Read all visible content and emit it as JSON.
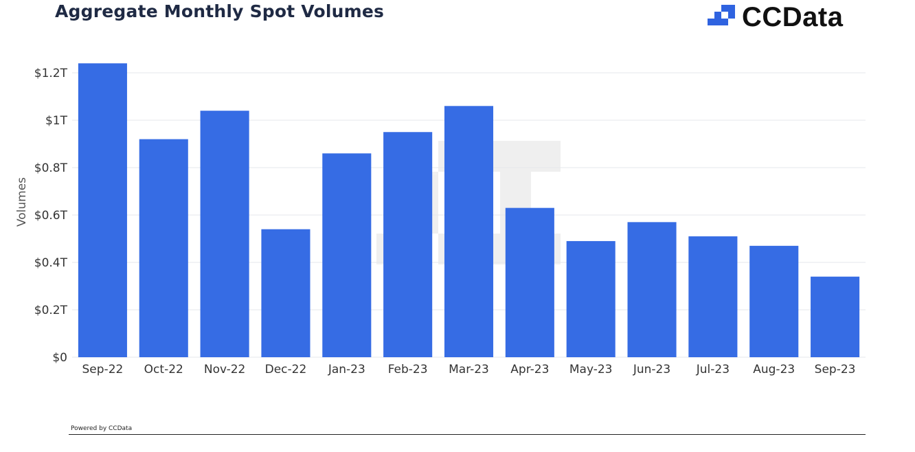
{
  "header": {
    "title": "Aggregate Monthly Spot Volumes",
    "logo_text": "CCData",
    "logo_icon": "ccdata-logo-icon"
  },
  "footer": {
    "text": "Powered by CCData"
  },
  "colors": {
    "bar": "#3067e3",
    "grid": "#e5e7eb",
    "axis_text": "#333333",
    "title": "#1f2a44"
  },
  "chart_data": {
    "type": "bar",
    "title": "Aggregate Monthly Spot Volumes",
    "xlabel": "",
    "ylabel": "Volumes",
    "categories": [
      "Sep-22",
      "Oct-22",
      "Nov-22",
      "Dec-22",
      "Jan-23",
      "Feb-23",
      "Mar-23",
      "Apr-23",
      "May-23",
      "Jun-23",
      "Jul-23",
      "Aug-23",
      "Sep-23"
    ],
    "values": [
      1.24,
      0.92,
      1.04,
      0.54,
      0.86,
      0.95,
      1.06,
      0.63,
      0.49,
      0.57,
      0.51,
      0.47,
      0.34
    ],
    "ylim": [
      0,
      1.2
    ],
    "yticks": [
      0,
      0.2,
      0.4,
      0.6,
      0.8,
      1.0,
      1.2
    ],
    "ytick_labels": [
      "$0",
      "$0.2T",
      "$0.4T",
      "$0.6T",
      "$0.8T",
      "$1T",
      "$1.2T"
    ],
    "grid": true,
    "legend": "none"
  }
}
